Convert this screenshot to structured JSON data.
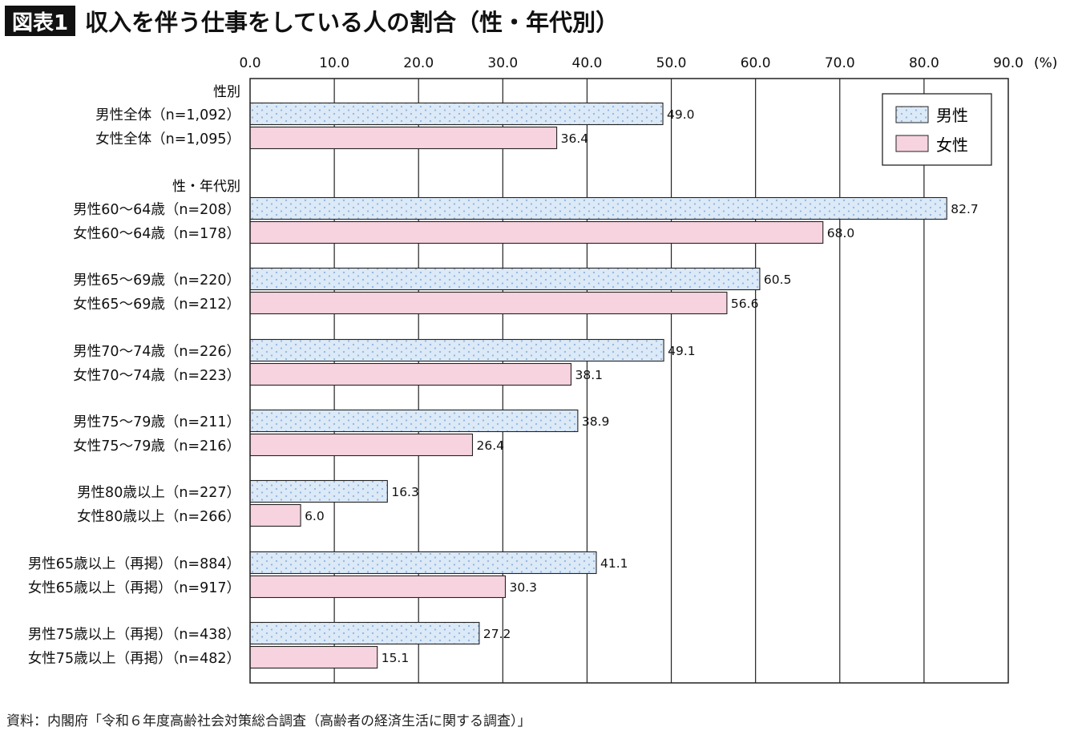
{
  "header": {
    "badge": "図表1",
    "title": "収入を伴う仕事をしている人の割合（性・年代別）"
  },
  "footer": {
    "source": "資料：内閣府「令和６年度高齢社会対策総合調査（高齢者の経済生活に関する調査）」"
  },
  "colors": {
    "male_fill": "#dce9f7",
    "male_dot": "#8fb4e0",
    "female_fill": "#f6d3df",
    "frame": "#222222",
    "badge_bg": "#111111"
  },
  "chart_data": {
    "type": "bar",
    "orientation": "horizontal",
    "xlim": [
      0,
      90
    ],
    "x_ticks": [
      "0.0",
      "10.0",
      "20.0",
      "30.0",
      "40.0",
      "50.0",
      "60.0",
      "70.0",
      "80.0",
      "90.0"
    ],
    "x_unit": "(%)",
    "grid": "vertical",
    "legend": {
      "position": "top-right",
      "entries": [
        "男性",
        "女性"
      ]
    },
    "section_labels": [
      "性別",
      "性・年代別"
    ],
    "series": [
      {
        "name": "男性"
      },
      {
        "name": "女性"
      }
    ],
    "bars": [
      {
        "category": "男性全体（n=1,092）",
        "series": "男性",
        "value": 49.0,
        "label": "49.0"
      },
      {
        "category": "女性全体（n=1,095）",
        "series": "女性",
        "value": 36.4,
        "label": "36.4"
      },
      {
        "category": "男性60～64歳（n=208）",
        "series": "男性",
        "value": 82.7,
        "label": "82.7"
      },
      {
        "category": "女性60～64歳（n=178）",
        "series": "女性",
        "value": 68.0,
        "label": "68.0"
      },
      {
        "category": "男性65～69歳（n=220）",
        "series": "男性",
        "value": 60.5,
        "label": "60.5"
      },
      {
        "category": "女性65～69歳（n=212）",
        "series": "女性",
        "value": 56.6,
        "label": "56.6"
      },
      {
        "category": "男性70～74歳（n=226）",
        "series": "男性",
        "value": 49.1,
        "label": "49.1"
      },
      {
        "category": "女性70～74歳（n=223）",
        "series": "女性",
        "value": 38.1,
        "label": "38.1"
      },
      {
        "category": "男性75～79歳（n=211）",
        "series": "男性",
        "value": 38.9,
        "label": "38.9"
      },
      {
        "category": "女性75～79歳（n=216）",
        "series": "女性",
        "value": 26.4,
        "label": "26.4"
      },
      {
        "category": "男性80歳以上（n=227）",
        "series": "男性",
        "value": 16.3,
        "label": "16.3"
      },
      {
        "category": "女性80歳以上（n=266）",
        "series": "女性",
        "value": 6.0,
        "label": "6.0"
      },
      {
        "category": "男性65歳以上（再掲）（n=884）",
        "series": "男性",
        "value": 41.1,
        "label": "41.1"
      },
      {
        "category": "女性65歳以上（再掲）（n=917）",
        "series": "女性",
        "value": 30.3,
        "label": "30.3"
      },
      {
        "category": "男性75歳以上（再掲）（n=438）",
        "series": "男性",
        "value": 27.2,
        "label": "27.2"
      },
      {
        "category": "女性75歳以上（再掲）（n=482）",
        "series": "女性",
        "value": 15.1,
        "label": "15.1"
      }
    ]
  }
}
